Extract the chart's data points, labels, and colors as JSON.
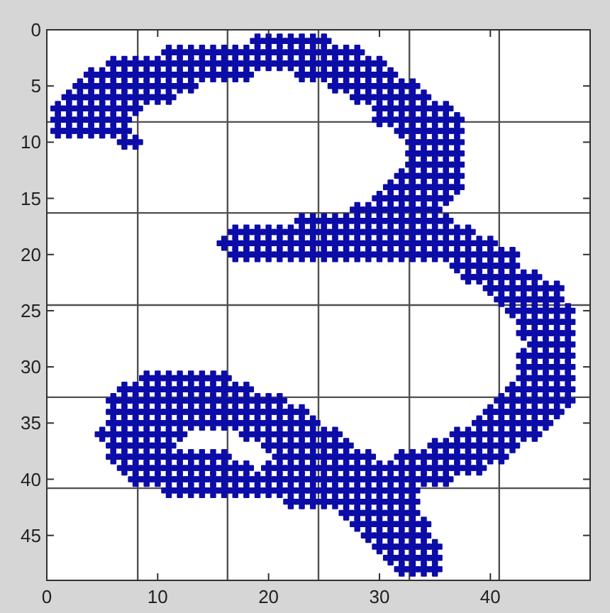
{
  "chart_data": {
    "type": "scatter",
    "marker": "cross",
    "grid": true,
    "xlim": [
      0,
      49
    ],
    "ylim": [
      49,
      0
    ],
    "xticks": [
      0,
      {
        "value": 8.2,
        "label": null
      },
      10,
      {
        "value": 16.3,
        "label": null
      },
      20,
      {
        "value": 24.5,
        "label": null
      },
      30,
      {
        "value": 32.7,
        "label": null
      },
      40,
      {
        "value": 40.8,
        "label": null
      }
    ],
    "yticks": [
      0,
      5,
      {
        "value": 8.2,
        "label": null
      },
      10,
      15,
      {
        "value": 16.3,
        "label": null
      },
      20,
      {
        "value": 24.5,
        "label": null
      },
      25,
      30,
      {
        "value": 32.7,
        "label": null
      },
      35,
      40,
      {
        "value": 40.8,
        "label": null
      },
      45
    ],
    "series": [
      {
        "color": "#0c0ca8",
        "x": [
          19,
          20,
          21,
          22,
          23,
          24,
          25
        ],
        "values": [
          1,
          1,
          1,
          1,
          1,
          1,
          1
        ]
      },
      {
        "color": "#0c0ca8",
        "x": [
          11,
          12,
          13,
          14,
          15,
          16,
          17,
          18,
          19,
          20,
          21,
          22,
          23,
          24,
          25,
          26,
          27,
          28
        ],
        "values": [
          2,
          2,
          2,
          2,
          2,
          2,
          2,
          2,
          2,
          2,
          2,
          2,
          2,
          2,
          2,
          2,
          2,
          2
        ]
      },
      {
        "color": "#0c0ca8",
        "x": [
          6,
          7,
          8,
          9,
          10,
          11,
          12,
          13,
          14,
          15,
          16,
          17,
          18,
          19,
          20,
          21,
          22,
          23,
          24,
          25,
          26,
          27,
          28,
          29,
          30
        ],
        "values": [
          3,
          3,
          3,
          3,
          3,
          3,
          3,
          3,
          3,
          3,
          3,
          3,
          3,
          3,
          3,
          3,
          3,
          3,
          3,
          3,
          3,
          3,
          3,
          3,
          3
        ]
      },
      {
        "color": "#0c0ca8",
        "x": [
          4,
          5,
          6,
          7,
          8,
          9,
          10,
          11,
          12,
          13,
          14,
          15,
          16,
          17,
          18,
          23,
          24,
          25,
          26,
          27,
          28,
          29,
          30,
          31
        ],
        "values": [
          4,
          4,
          4,
          4,
          4,
          4,
          4,
          4,
          4,
          4,
          4,
          4,
          4,
          4,
          4,
          4,
          4,
          4,
          4,
          4,
          4,
          4,
          4,
          4
        ]
      },
      {
        "color": "#0c0ca8",
        "x": [
          3,
          4,
          5,
          6,
          7,
          8,
          9,
          10,
          11,
          12,
          13,
          26,
          27,
          28,
          29,
          30,
          31,
          32,
          33
        ],
        "values": [
          5,
          5,
          5,
          5,
          5,
          5,
          5,
          5,
          5,
          5,
          5,
          5,
          5,
          5,
          5,
          5,
          5,
          5,
          5
        ]
      },
      {
        "color": "#0c0ca8",
        "x": [
          2,
          3,
          4,
          5,
          6,
          7,
          8,
          9,
          10,
          11,
          28,
          29,
          30,
          31,
          32,
          33,
          34
        ],
        "values": [
          6,
          6,
          6,
          6,
          6,
          6,
          6,
          6,
          6,
          6,
          6,
          6,
          6,
          6,
          6,
          6,
          6
        ]
      },
      {
        "color": "#0c0ca8",
        "x": [
          1,
          2,
          3,
          4,
          5,
          6,
          7,
          8,
          30,
          31,
          32,
          33,
          34,
          35,
          36
        ],
        "values": [
          7,
          7,
          7,
          7,
          7,
          7,
          7,
          7,
          7,
          7,
          7,
          7,
          7,
          7,
          7
        ]
      },
      {
        "color": "#0c0ca8",
        "x": [
          1,
          2,
          3,
          4,
          5,
          6,
          7,
          30,
          31,
          32,
          33,
          34,
          35,
          36,
          37
        ],
        "values": [
          8,
          8,
          8,
          8,
          8,
          8,
          8,
          8,
          8,
          8,
          8,
          8,
          8,
          8,
          8
        ]
      },
      {
        "color": "#0c0ca8",
        "x": [
          1,
          2,
          3,
          4,
          5,
          6,
          7,
          32,
          33,
          34,
          35,
          36,
          37
        ],
        "values": [
          9,
          9,
          9,
          9,
          9,
          9,
          9,
          9,
          9,
          9,
          9,
          9,
          9
        ]
      },
      {
        "color": "#0c0ca8",
        "x": [
          7,
          8,
          33,
          34,
          35,
          36,
          37
        ],
        "values": [
          10,
          10,
          10,
          10,
          10,
          10,
          10
        ]
      },
      {
        "color": "#0c0ca8",
        "x": [
          33,
          34,
          35,
          36,
          37
        ],
        "values": [
          11,
          11,
          11,
          11,
          11
        ]
      },
      {
        "color": "#0c0ca8",
        "x": [
          33,
          34,
          35,
          36,
          37
        ],
        "values": [
          12,
          12,
          12,
          12,
          12
        ]
      },
      {
        "color": "#0c0ca8",
        "x": [
          32,
          33,
          34,
          35,
          36,
          37
        ],
        "values": [
          13,
          13,
          13,
          13,
          13,
          13
        ]
      },
      {
        "color": "#0c0ca8",
        "x": [
          31,
          32,
          33,
          34,
          35,
          36,
          37
        ],
        "values": [
          14,
          14,
          14,
          14,
          14,
          14,
          14
        ]
      },
      {
        "color": "#0c0ca8",
        "x": [
          30,
          31,
          32,
          33,
          34,
          35,
          36
        ],
        "values": [
          15,
          15,
          15,
          15,
          15,
          15,
          15
        ]
      },
      {
        "color": "#0c0ca8",
        "x": [
          28,
          29,
          30,
          31,
          32,
          33,
          34,
          35
        ],
        "values": [
          16,
          16,
          16,
          16,
          16,
          16,
          16,
          16
        ]
      },
      {
        "color": "#0c0ca8",
        "x": [
          23,
          24,
          25,
          26,
          27,
          28,
          29,
          30,
          31,
          32,
          33,
          34,
          35,
          36
        ],
        "values": [
          17,
          17,
          17,
          17,
          17,
          17,
          17,
          17,
          17,
          17,
          17,
          17,
          17,
          17
        ]
      },
      {
        "color": "#0c0ca8",
        "x": [
          17,
          18,
          19,
          20,
          21,
          22,
          23,
          24,
          25,
          26,
          27,
          28,
          29,
          30,
          31,
          32,
          33,
          34,
          35,
          36,
          37,
          38
        ],
        "values": [
          18,
          18,
          18,
          18,
          18,
          18,
          18,
          18,
          18,
          18,
          18,
          18,
          18,
          18,
          18,
          18,
          18,
          18,
          18,
          18,
          18,
          18
        ]
      },
      {
        "color": "#0c0ca8",
        "x": [
          16,
          17,
          18,
          19,
          20,
          21,
          22,
          23,
          24,
          25,
          26,
          27,
          28,
          29,
          30,
          31,
          32,
          33,
          34,
          35,
          36,
          37,
          38,
          39,
          40
        ],
        "values": [
          19,
          19,
          19,
          19,
          19,
          19,
          19,
          19,
          19,
          19,
          19,
          19,
          19,
          19,
          19,
          19,
          19,
          19,
          19,
          19,
          19,
          19,
          19,
          19,
          19
        ]
      },
      {
        "color": "#0c0ca8",
        "x": [
          17,
          18,
          19,
          20,
          21,
          22,
          23,
          24,
          25,
          26,
          27,
          28,
          29,
          30,
          31,
          32,
          33,
          34,
          35,
          36,
          37,
          38,
          39,
          40,
          41,
          42
        ],
        "values": [
          20,
          20,
          20,
          20,
          20,
          20,
          20,
          20,
          20,
          20,
          20,
          20,
          20,
          20,
          20,
          20,
          20,
          20,
          20,
          20,
          20,
          20,
          20,
          20,
          20,
          20
        ]
      },
      {
        "color": "#0c0ca8",
        "x": [
          37,
          38,
          39,
          40,
          41,
          42
        ],
        "values": [
          21,
          21,
          21,
          21,
          21,
          21
        ]
      },
      {
        "color": "#0c0ca8",
        "x": [
          38,
          39,
          40,
          41,
          42,
          43,
          44
        ],
        "values": [
          22,
          22,
          22,
          22,
          22,
          22,
          22
        ]
      },
      {
        "color": "#0c0ca8",
        "x": [
          40,
          41,
          42,
          43,
          44,
          45,
          46
        ],
        "values": [
          23,
          23,
          23,
          23,
          23,
          23,
          23
        ]
      },
      {
        "color": "#0c0ca8",
        "x": [
          41,
          42,
          43,
          44,
          45,
          46
        ],
        "values": [
          24,
          24,
          24,
          24,
          24,
          24
        ]
      },
      {
        "color": "#0c0ca8",
        "x": [
          42,
          43,
          44,
          45,
          46,
          47
        ],
        "values": [
          25,
          25,
          25,
          25,
          25,
          25
        ]
      },
      {
        "color": "#0c0ca8",
        "x": [
          43,
          44,
          45,
          46,
          47
        ],
        "values": [
          26,
          26,
          26,
          26,
          26
        ]
      },
      {
        "color": "#0c0ca8",
        "x": [
          43,
          44,
          45,
          46,
          47
        ],
        "values": [
          27,
          27,
          27,
          27,
          27
        ]
      },
      {
        "color": "#0c0ca8",
        "x": [
          44,
          45,
          46,
          47
        ],
        "values": [
          28,
          28,
          28,
          28
        ]
      },
      {
        "color": "#0c0ca8",
        "x": [
          43,
          44,
          45,
          46,
          47
        ],
        "values": [
          29,
          29,
          29,
          29,
          29
        ]
      },
      {
        "color": "#0c0ca8",
        "x": [
          43,
          44,
          45,
          46,
          47
        ],
        "values": [
          30,
          30,
          30,
          30,
          30
        ]
      },
      {
        "color": "#0c0ca8",
        "x": [
          9,
          10,
          11,
          12,
          13,
          14,
          15,
          16,
          43,
          44,
          45,
          46,
          47
        ],
        "values": [
          31,
          31,
          31,
          31,
          31,
          31,
          31,
          31,
          31,
          31,
          31,
          31,
          31
        ]
      },
      {
        "color": "#0c0ca8",
        "x": [
          7,
          8,
          9,
          10,
          11,
          12,
          13,
          14,
          15,
          16,
          17,
          18,
          42,
          43,
          44,
          45,
          46,
          47
        ],
        "values": [
          32,
          32,
          32,
          32,
          32,
          32,
          32,
          32,
          32,
          32,
          32,
          32,
          32,
          32,
          32,
          32,
          32,
          32
        ]
      },
      {
        "color": "#0c0ca8",
        "x": [
          6,
          7,
          8,
          9,
          10,
          11,
          12,
          13,
          14,
          15,
          16,
          17,
          18,
          19,
          20,
          21,
          41,
          42,
          43,
          44,
          45,
          46,
          47
        ],
        "values": [
          33,
          33,
          33,
          33,
          33,
          33,
          33,
          33,
          33,
          33,
          33,
          33,
          33,
          33,
          33,
          33,
          33,
          33,
          33,
          33,
          33,
          33,
          33
        ]
      },
      {
        "color": "#0c0ca8",
        "x": [
          6,
          7,
          8,
          9,
          10,
          11,
          12,
          13,
          14,
          15,
          16,
          17,
          18,
          19,
          20,
          21,
          22,
          23,
          40,
          41,
          42,
          43,
          44,
          45,
          46
        ],
        "values": [
          34,
          34,
          34,
          34,
          34,
          34,
          34,
          34,
          34,
          34,
          34,
          34,
          34,
          34,
          34,
          34,
          34,
          34,
          34,
          34,
          34,
          34,
          34,
          34,
          34
        ]
      },
      {
        "color": "#0c0ca8",
        "x": [
          6,
          7,
          8,
          9,
          10,
          11,
          12,
          13,
          14,
          15,
          16,
          17,
          18,
          19,
          20,
          21,
          22,
          23,
          24,
          39,
          40,
          41,
          42,
          43,
          44,
          45
        ],
        "values": [
          35,
          35,
          35,
          35,
          35,
          35,
          35,
          35,
          35,
          35,
          35,
          35,
          35,
          35,
          35,
          35,
          35,
          35,
          35,
          35,
          35,
          35,
          35,
          35,
          35,
          35
        ]
      },
      {
        "color": "#0c0ca8",
        "x": [
          5,
          6,
          7,
          8,
          9,
          10,
          11,
          12,
          18,
          19,
          20,
          21,
          22,
          23,
          24,
          25,
          26,
          37,
          38,
          39,
          40,
          41,
          42,
          43,
          44
        ],
        "values": [
          36,
          36,
          36,
          36,
          36,
          36,
          36,
          36,
          36,
          36,
          36,
          36,
          36,
          36,
          36,
          36,
          36,
          36,
          36,
          36,
          36,
          36,
          36,
          36,
          36
        ]
      },
      {
        "color": "#0c0ca8",
        "x": [
          6,
          7,
          8,
          9,
          10,
          11,
          20,
          21,
          22,
          23,
          24,
          25,
          26,
          27,
          35,
          36,
          37,
          38,
          39,
          40,
          41,
          42
        ],
        "values": [
          37,
          37,
          37,
          37,
          37,
          37,
          37,
          37,
          37,
          37,
          37,
          37,
          37,
          37,
          37,
          37,
          37,
          37,
          37,
          37,
          37,
          37
        ]
      },
      {
        "color": "#0c0ca8",
        "x": [
          6,
          7,
          8,
          9,
          10,
          11,
          12,
          13,
          14,
          15,
          16,
          21,
          22,
          23,
          24,
          25,
          26,
          27,
          28,
          29,
          32,
          33,
          34,
          35,
          36,
          37,
          38,
          39,
          40,
          41
        ],
        "values": [
          38,
          38,
          38,
          38,
          38,
          38,
          38,
          38,
          38,
          38,
          38,
          38,
          38,
          38,
          38,
          38,
          38,
          38,
          38,
          38,
          38,
          38,
          38,
          38,
          38,
          38,
          38,
          38,
          38,
          38
        ]
      },
      {
        "color": "#0c0ca8",
        "x": [
          7,
          8,
          9,
          10,
          11,
          12,
          13,
          14,
          15,
          16,
          17,
          18,
          20,
          21,
          22,
          23,
          24,
          25,
          26,
          27,
          28,
          29,
          30,
          31,
          32,
          33,
          34,
          35,
          36,
          37,
          38,
          39
        ],
        "values": [
          39,
          39,
          39,
          39,
          39,
          39,
          39,
          39,
          39,
          39,
          39,
          39,
          39,
          39,
          39,
          39,
          39,
          39,
          39,
          39,
          39,
          39,
          39,
          39,
          39,
          39,
          39,
          39,
          39,
          39,
          39,
          39
        ]
      },
      {
        "color": "#0c0ca8",
        "x": [
          8,
          9,
          10,
          11,
          12,
          13,
          14,
          15,
          16,
          17,
          18,
          19,
          20,
          21,
          22,
          23,
          24,
          25,
          26,
          27,
          28,
          29,
          30,
          31,
          32,
          33,
          34,
          35,
          36
        ],
        "values": [
          40,
          40,
          40,
          40,
          40,
          40,
          40,
          40,
          40,
          40,
          40,
          40,
          40,
          40,
          40,
          40,
          40,
          40,
          40,
          40,
          40,
          40,
          40,
          40,
          40,
          40,
          40,
          40,
          40
        ]
      },
      {
        "color": "#0c0ca8",
        "x": [
          11,
          12,
          13,
          14,
          15,
          16,
          17,
          18,
          19,
          20,
          21,
          22,
          23,
          24,
          25,
          26,
          27,
          28,
          29,
          30,
          31,
          32,
          33
        ],
        "values": [
          41,
          41,
          41,
          41,
          41,
          41,
          41,
          41,
          41,
          41,
          41,
          41,
          41,
          41,
          41,
          41,
          41,
          41,
          41,
          41,
          41,
          41,
          41
        ]
      },
      {
        "color": "#0c0ca8",
        "x": [
          22,
          23,
          24,
          25,
          26,
          27,
          28,
          29,
          30,
          31,
          32,
          33
        ],
        "values": [
          42,
          42,
          42,
          42,
          42,
          42,
          42,
          42,
          42,
          42,
          42,
          42
        ]
      },
      {
        "color": "#0c0ca8",
        "x": [
          27,
          28,
          29,
          30,
          31,
          32,
          33
        ],
        "values": [
          43,
          43,
          43,
          43,
          43,
          43,
          43
        ]
      },
      {
        "color": "#0c0ca8",
        "x": [
          28,
          29,
          30,
          31,
          32,
          33,
          34
        ],
        "values": [
          44,
          44,
          44,
          44,
          44,
          44,
          44
        ]
      },
      {
        "color": "#0c0ca8",
        "x": [
          29,
          30,
          31,
          32,
          33,
          34
        ],
        "values": [
          45,
          45,
          45,
          45,
          45,
          45
        ]
      },
      {
        "color": "#0c0ca8",
        "x": [
          30,
          31,
          32,
          33,
          34,
          35
        ],
        "values": [
          46,
          46,
          46,
          46,
          46,
          46
        ]
      },
      {
        "color": "#0c0ca8",
        "x": [
          31,
          32,
          33,
          34,
          35
        ],
        "values": [
          47,
          47,
          47,
          47,
          47
        ]
      },
      {
        "color": "#0c0ca8",
        "x": [
          32,
          33,
          34,
          35
        ],
        "values": [
          48,
          48,
          48,
          48
        ]
      }
    ]
  }
}
